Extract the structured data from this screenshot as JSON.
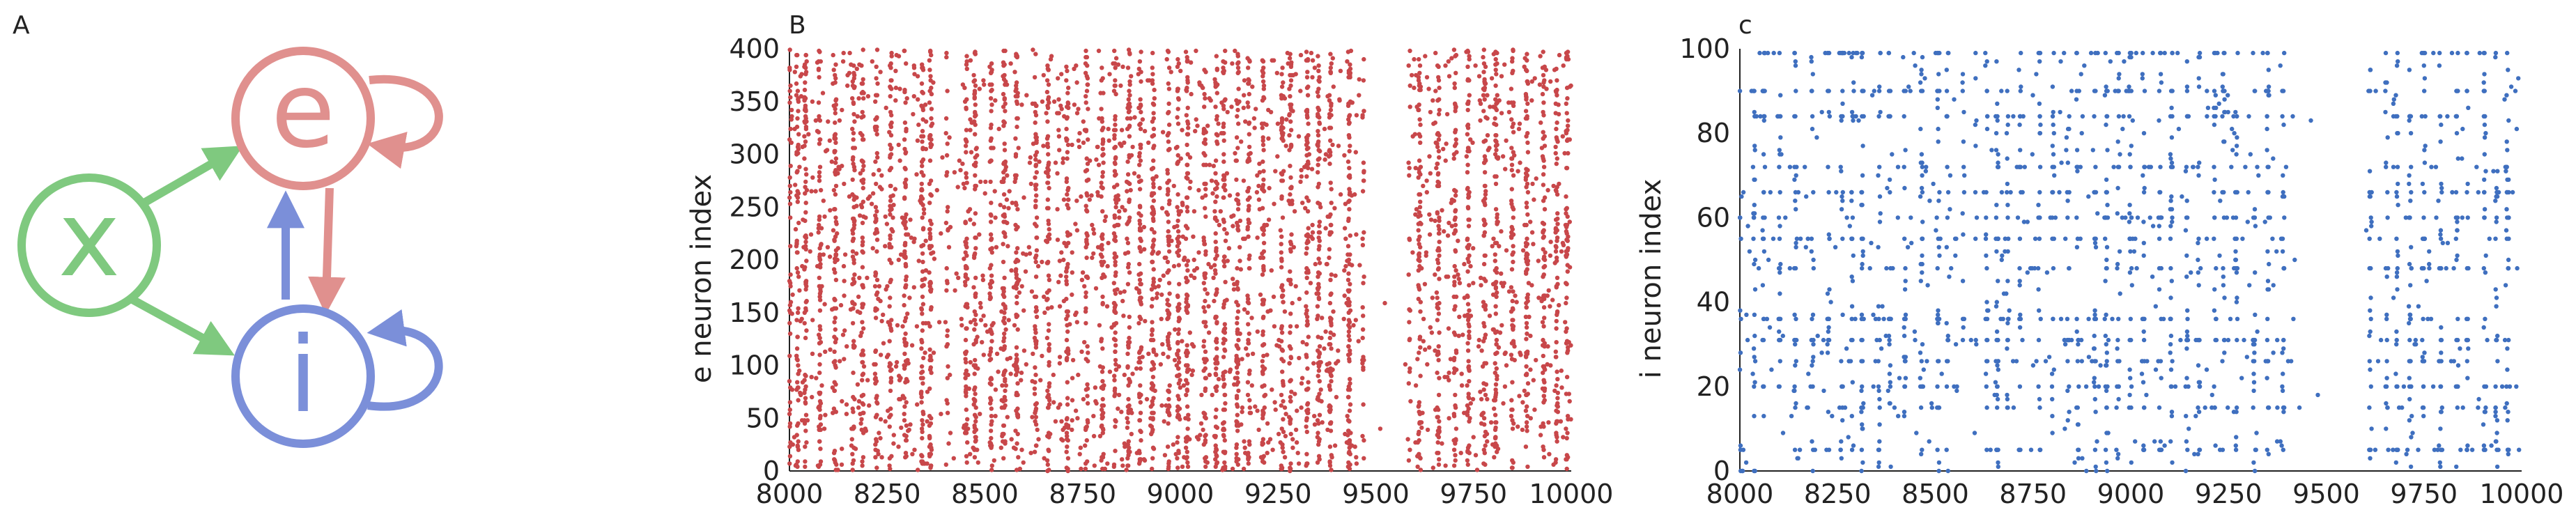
{
  "panels": {
    "a": "A",
    "b": "B",
    "c": "c"
  },
  "diagram": {
    "nodes": [
      {
        "id": "x",
        "label": "x",
        "color": "#7fc97f"
      },
      {
        "id": "e",
        "label": "e",
        "color": "#e0908e"
      },
      {
        "id": "i",
        "label": "i",
        "color": "#7b8fd9"
      }
    ],
    "edges": [
      {
        "from": "x",
        "to": "e"
      },
      {
        "from": "x",
        "to": "i"
      },
      {
        "from": "e",
        "to": "i"
      },
      {
        "from": "i",
        "to": "e"
      },
      {
        "from": "e",
        "to": "e"
      },
      {
        "from": "i",
        "to": "i"
      }
    ]
  },
  "chart_data": [
    {
      "type": "scatter",
      "panel": "B",
      "ylabel": "e neuron index",
      "xlabel": "",
      "xlim": [
        8000,
        10000
      ],
      "ylim": [
        0,
        400
      ],
      "xticks": [
        "8000",
        "8250",
        "8500",
        "8750",
        "9000",
        "9250",
        "9500",
        "9750",
        "10000"
      ],
      "yticks": [
        "0",
        "50",
        "100",
        "150",
        "200",
        "250",
        "300",
        "350",
        "400"
      ],
      "marker_color": "#c8474a",
      "spike_summary": {
        "neuron_count": 400,
        "low_activity_windows": [
          [
            8370,
            8440
          ],
          [
            9460,
            9590
          ]
        ],
        "silent_window": [
          9470,
          9570
        ]
      }
    },
    {
      "type": "scatter",
      "panel": "c",
      "ylabel": "i neuron index",
      "xlabel": "",
      "xlim": [
        8000,
        10000
      ],
      "ylim": [
        0,
        100
      ],
      "xticks": [
        "8000",
        "8250",
        "8500",
        "8750",
        "9000",
        "9250",
        "9500",
        "9750",
        "10000"
      ],
      "yticks": [
        "0",
        "20",
        "40",
        "60",
        "80",
        "100"
      ],
      "marker_color": "#3f6fbf",
      "spike_summary": {
        "neuron_count": 100,
        "low_activity_windows": [
          [
            8560,
            8620
          ],
          [
            9400,
            9600
          ]
        ],
        "silent_window": [
          9420,
          9590
        ]
      }
    }
  ]
}
